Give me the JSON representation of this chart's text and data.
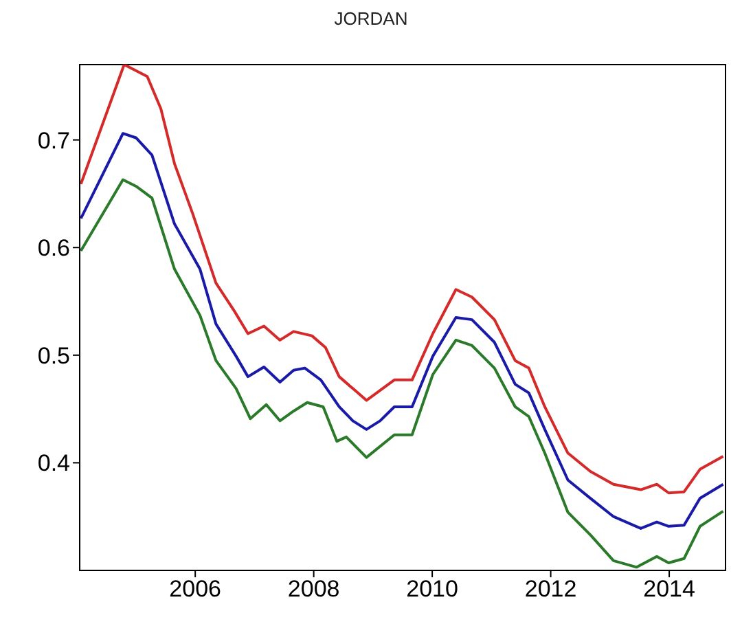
{
  "chart_data": {
    "type": "line",
    "title": "JORDAN",
    "xlim": [
      2004.05,
      2014.95
    ],
    "xticks": [
      2006,
      2008,
      2010,
      2012,
      2014
    ],
    "ylim": [
      0.3,
      0.77
    ],
    "yticks": [
      0.4,
      0.5,
      0.6,
      0.7
    ],
    "grid": false,
    "marker": "none",
    "line_style": "solid",
    "series": [
      {
        "color": "#d42a2a",
        "x": [
          2004.07,
          2004.8,
          2005.19,
          2005.42,
          2005.65,
          2005.96,
          2006.35,
          2006.66,
          2006.89,
          2007.16,
          2007.43,
          2007.66,
          2007.97,
          2008.2,
          2008.43,
          2008.66,
          2008.89,
          2009.36,
          2009.66,
          2010.01,
          2010.4,
          2010.67,
          2011.05,
          2011.4,
          2011.63,
          2011.9,
          2012.29,
          2012.67,
          2013.06,
          2013.52,
          2013.79,
          2013.99,
          2014.25,
          2014.52,
          2014.91
        ],
        "values": [
          0.659,
          0.77,
          0.759,
          0.729,
          0.678,
          0.631,
          0.567,
          0.541,
          0.52,
          0.527,
          0.514,
          0.522,
          0.518,
          0.507,
          0.48,
          0.469,
          0.458,
          0.477,
          0.477,
          0.52,
          0.561,
          0.554,
          0.533,
          0.495,
          0.488,
          0.452,
          0.409,
          0.392,
          0.38,
          0.375,
          0.38,
          0.372,
          0.373,
          0.394,
          0.406
        ]
      },
      {
        "color": "#1a1aa8",
        "x": [
          2004.07,
          2004.78,
          2005.0,
          2005.27,
          2005.65,
          2006.08,
          2006.35,
          2006.69,
          2006.89,
          2007.16,
          2007.43,
          2007.66,
          2007.85,
          2008.12,
          2008.43,
          2008.66,
          2008.89,
          2009.12,
          2009.36,
          2009.66,
          2010.01,
          2010.4,
          2010.67,
          2011.05,
          2011.4,
          2011.63,
          2011.9,
          2012.29,
          2012.67,
          2013.06,
          2013.52,
          2013.79,
          2013.99,
          2014.25,
          2014.52,
          2014.91
        ],
        "values": [
          0.627,
          0.706,
          0.702,
          0.686,
          0.622,
          0.58,
          0.529,
          0.499,
          0.48,
          0.489,
          0.475,
          0.486,
          0.488,
          0.477,
          0.452,
          0.439,
          0.431,
          0.439,
          0.452,
          0.452,
          0.499,
          0.535,
          0.533,
          0.512,
          0.473,
          0.465,
          0.431,
          0.384,
          0.367,
          0.35,
          0.339,
          0.345,
          0.341,
          0.342,
          0.367,
          0.38
        ]
      },
      {
        "color": "#2a7a2a",
        "x": [
          2004.07,
          2004.78,
          2005.0,
          2005.27,
          2005.65,
          2006.08,
          2006.35,
          2006.69,
          2006.93,
          2007.2,
          2007.43,
          2007.66,
          2007.89,
          2008.16,
          2008.39,
          2008.55,
          2008.89,
          2009.36,
          2009.66,
          2010.01,
          2010.4,
          2010.67,
          2011.05,
          2011.4,
          2011.63,
          2011.9,
          2012.29,
          2012.67,
          2013.06,
          2013.45,
          2013.79,
          2013.99,
          2014.25,
          2014.52,
          2014.91
        ],
        "values": [
          0.597,
          0.663,
          0.657,
          0.646,
          0.58,
          0.537,
          0.495,
          0.469,
          0.441,
          0.454,
          0.439,
          0.448,
          0.456,
          0.452,
          0.42,
          0.424,
          0.405,
          0.426,
          0.426,
          0.482,
          0.514,
          0.509,
          0.488,
          0.452,
          0.443,
          0.409,
          0.354,
          0.333,
          0.309,
          0.303,
          0.313,
          0.307,
          0.311,
          0.341,
          0.355
        ]
      }
    ]
  }
}
